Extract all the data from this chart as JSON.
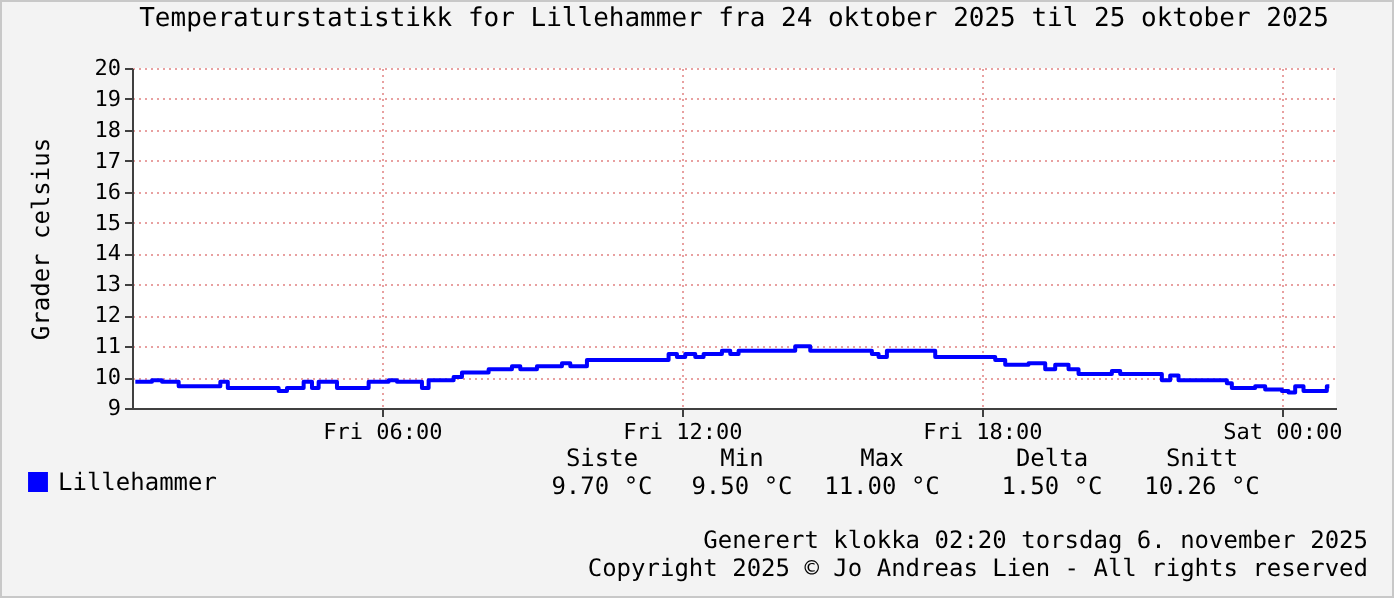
{
  "chart_data": {
    "type": "step",
    "title": "Temperaturstatistikk for Lillehammer fra 24 oktober 2025 til 25 oktober 2025",
    "ylabel": "Grader celsius",
    "x": [
      "2025-10-24T01:04",
      "2025-10-24T01:24",
      "2025-10-24T01:36",
      "2025-10-24T01:56",
      "2025-10-24T02:46",
      "2025-10-24T02:55",
      "2025-10-24T03:56",
      "2025-10-24T04:06",
      "2025-10-24T04:26",
      "2025-10-24T04:36",
      "2025-10-24T04:44",
      "2025-10-24T05:06",
      "2025-10-24T05:44",
      "2025-10-24T06:08",
      "2025-10-24T06:18",
      "2025-10-24T06:48",
      "2025-10-24T06:56",
      "2025-10-24T07:26",
      "2025-10-24T07:36",
      "2025-10-24T08:08",
      "2025-10-24T08:36",
      "2025-10-24T08:46",
      "2025-10-24T09:06",
      "2025-10-24T09:36",
      "2025-10-24T09:46",
      "2025-10-24T10:06",
      "2025-10-24T11:44",
      "2025-10-24T11:54",
      "2025-10-24T12:04",
      "2025-10-24T12:16",
      "2025-10-24T12:26",
      "2025-10-24T12:48",
      "2025-10-24T12:58",
      "2025-10-24T13:08",
      "2025-10-24T14:16",
      "2025-10-24T14:34",
      "2025-10-24T15:48",
      "2025-10-24T15:56",
      "2025-10-24T16:06",
      "2025-10-24T17:04",
      "2025-10-24T18:16",
      "2025-10-24T18:28",
      "2025-10-24T18:56",
      "2025-10-24T19:16",
      "2025-10-24T19:28",
      "2025-10-24T19:44",
      "2025-10-24T19:56",
      "2025-10-24T20:36",
      "2025-10-24T20:46",
      "2025-10-24T21:36",
      "2025-10-24T21:46",
      "2025-10-24T21:56",
      "2025-10-24T22:54",
      "2025-10-24T23:00",
      "2025-10-24T23:28",
      "2025-10-24T23:40",
      "2025-10-25T00:00",
      "2025-10-25T00:08",
      "2025-10-25T00:16",
      "2025-10-25T00:26",
      "2025-10-25T00:54",
      "2025-10-25T00:57"
    ],
    "series": [
      {
        "name": "Lillehammer",
        "color": "#0000ff",
        "values": [
          9.85,
          9.9,
          9.85,
          9.7,
          9.85,
          9.65,
          9.55,
          9.65,
          9.85,
          9.65,
          9.85,
          9.65,
          9.85,
          9.9,
          9.85,
          9.65,
          9.9,
          10.0,
          10.15,
          10.25,
          10.35,
          10.25,
          10.35,
          10.45,
          10.35,
          10.55,
          10.75,
          10.65,
          10.75,
          10.65,
          10.75,
          10.85,
          10.75,
          10.85,
          11.0,
          10.85,
          10.75,
          10.65,
          10.85,
          10.65,
          10.55,
          10.4,
          10.45,
          10.25,
          10.4,
          10.25,
          10.1,
          10.2,
          10.1,
          9.9,
          10.05,
          9.9,
          9.8,
          9.65,
          9.7,
          9.6,
          9.55,
          9.5,
          9.7,
          9.55,
          9.7,
          9.7
        ]
      }
    ],
    "xlim": [
      "2025-10-24T01:00",
      "2025-10-25T01:05"
    ],
    "xticks": [
      {
        "value": "2025-10-24T06:00",
        "label": "Fri 06:00"
      },
      {
        "value": "2025-10-24T12:00",
        "label": "Fri 12:00"
      },
      {
        "value": "2025-10-24T18:00",
        "label": "Fri 18:00"
      },
      {
        "value": "2025-10-25T00:00",
        "label": "Sat 00:00"
      }
    ],
    "ylim": [
      9,
      20
    ],
    "yticks": [
      9,
      10,
      11,
      12,
      13,
      14,
      15,
      16,
      17,
      18,
      19,
      20
    ],
    "grid": true,
    "legend": "bottom left",
    "marker": "none",
    "line_style": "solid",
    "annotations": [
      "Siste",
      "Min",
      "Max",
      "Delta",
      "Snitt",
      "9.70 °C",
      "9.50 °C",
      "11.00 °C",
      "1.50 °C",
      "10.26 °C",
      "Generert klokka 02:20 torsdag 6. november 2025",
      "Copyright 2025 © Jo Andreas Lien - All rights reserved"
    ]
  }
}
